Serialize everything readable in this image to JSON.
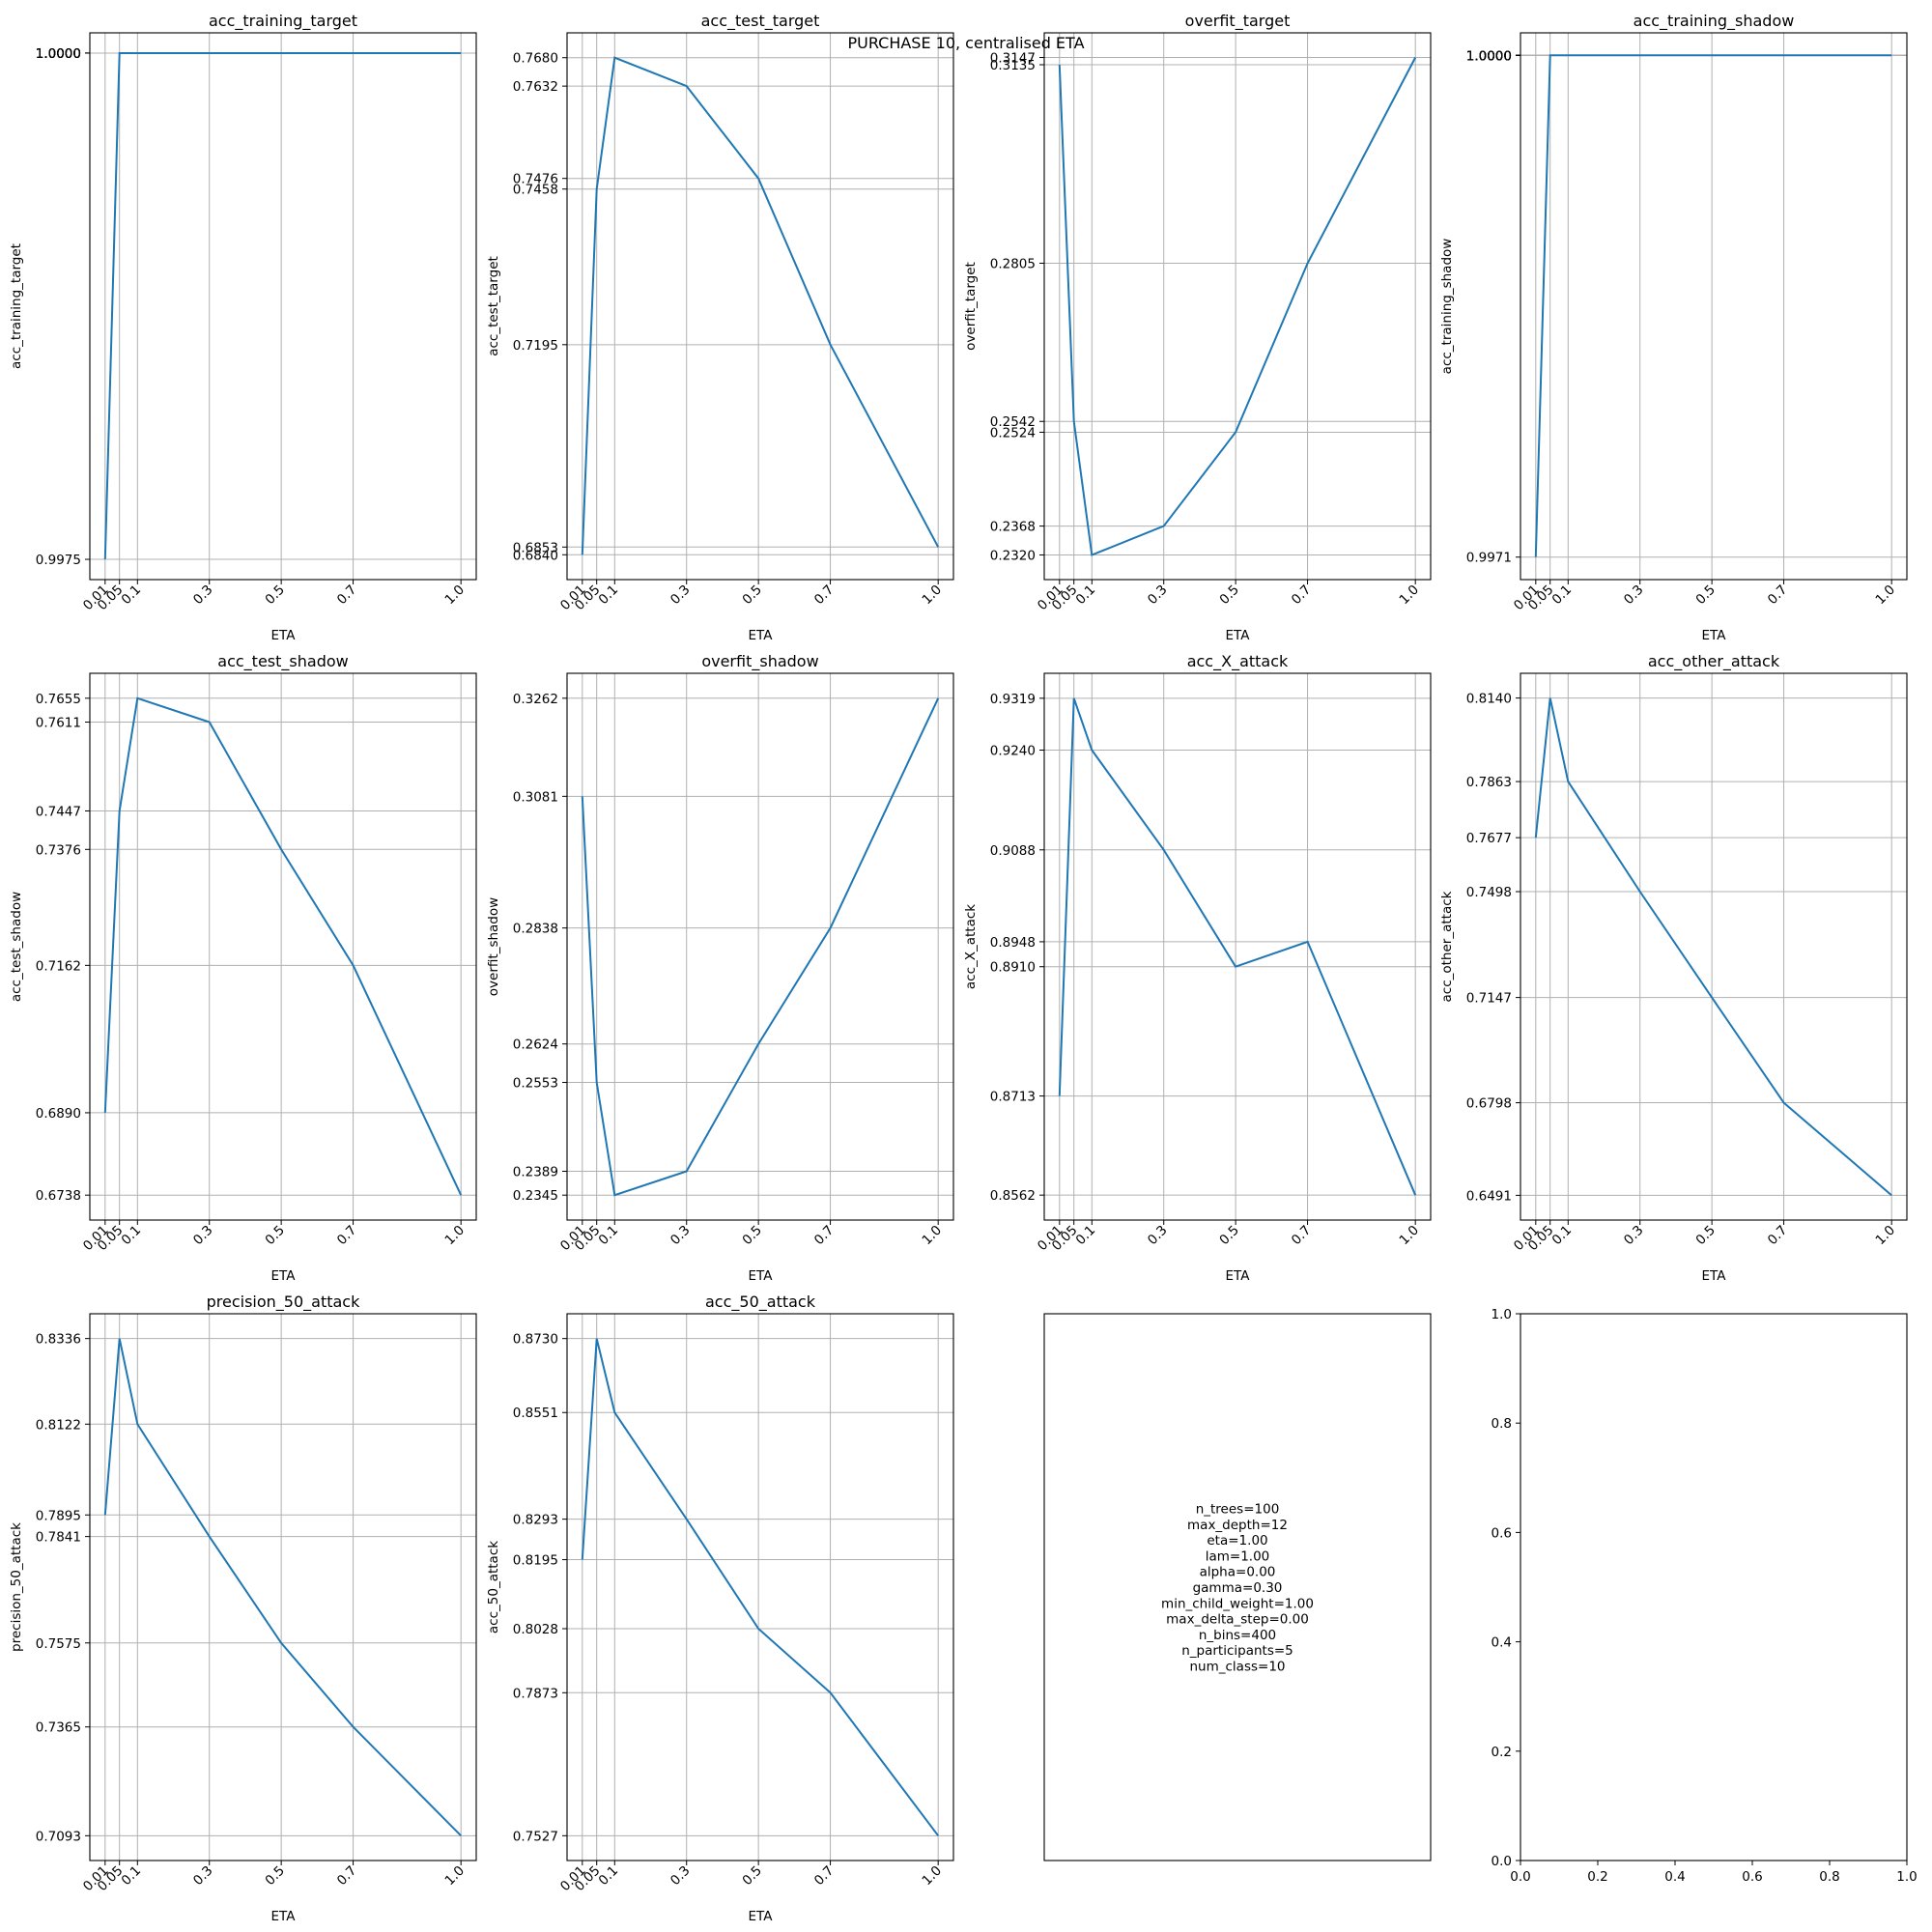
{
  "suptitle": "PURCHASE 10, centralised ETA",
  "chart_data": [
    {
      "type": "line",
      "title": "acc_training_target",
      "xlabel": "ETA",
      "ylabel": "acc_training_target",
      "x": [
        0.01,
        0.05,
        0.1,
        0.3,
        0.5,
        0.7,
        1.0
      ],
      "x_ticks": [
        "0.01",
        "0.05",
        "0.1",
        "0.3",
        "0.5",
        "0.7",
        "1.0"
      ],
      "y": [
        0.9975,
        1.0,
        1.0,
        1.0,
        1.0,
        1.0,
        1.0
      ],
      "y_ticks": [
        "1.0000",
        "1.0000",
        "1.0000",
        "1.0000",
        "1.0000",
        "1.0000",
        "0.9975"
      ],
      "y_tick_values": [
        1.0,
        1.0,
        1.0,
        1.0,
        1.0,
        1.0,
        0.9975
      ],
      "ylim": [
        0.9974,
        1.0001
      ],
      "grid": true
    },
    {
      "type": "line",
      "title": "acc_test_target",
      "xlabel": "ETA",
      "ylabel": "acc_test_target",
      "x": [
        0.01,
        0.05,
        0.1,
        0.3,
        0.5,
        0.7,
        1.0
      ],
      "x_ticks": [
        "0.01",
        "0.05",
        "0.1",
        "0.3",
        "0.5",
        "0.7",
        "1.0"
      ],
      "y": [
        0.684,
        0.7458,
        0.768,
        0.7632,
        0.7476,
        0.7195,
        0.6853
      ],
      "y_ticks": [
        "0.7680",
        "0.7632",
        "0.7476",
        "0.7458",
        "0.7195",
        "0.6853",
        "0.6840"
      ],
      "y_tick_values": [
        0.768,
        0.7632,
        0.7476,
        0.7458,
        0.7195,
        0.6853,
        0.684
      ],
      "ylim": [
        0.6798,
        0.7722
      ],
      "grid": true
    },
    {
      "type": "line",
      "title": "overfit_target",
      "xlabel": "ETA",
      "ylabel": "overfit_target",
      "x": [
        0.01,
        0.05,
        0.1,
        0.3,
        0.5,
        0.7,
        1.0
      ],
      "x_ticks": [
        "0.01",
        "0.05",
        "0.1",
        "0.3",
        "0.5",
        "0.7",
        "1.0"
      ],
      "y": [
        0.3135,
        0.2542,
        0.232,
        0.2368,
        0.2524,
        0.2805,
        0.3147
      ],
      "y_ticks": [
        "0.3147",
        "0.3135",
        "0.2805",
        "0.2542",
        "0.2524",
        "0.2368",
        "0.2320"
      ],
      "y_tick_values": [
        0.3147,
        0.3135,
        0.2805,
        0.2542,
        0.2524,
        0.2368,
        0.232
      ],
      "ylim": [
        0.2279,
        0.3188
      ],
      "grid": true
    },
    {
      "type": "line",
      "title": "acc_training_shadow",
      "xlabel": "ETA",
      "ylabel": "acc_training_shadow",
      "x": [
        0.01,
        0.05,
        0.1,
        0.3,
        0.5,
        0.7,
        1.0
      ],
      "x_ticks": [
        "0.01",
        "0.05",
        "0.1",
        "0.3",
        "0.5",
        "0.7",
        "1.0"
      ],
      "y": [
        0.9971,
        1.0,
        1.0,
        1.0,
        1.0,
        1.0,
        1.0
      ],
      "y_ticks": [
        "1.0000",
        "1.0000",
        "1.0000",
        "1.0000",
        "1.0000",
        "1.0000",
        "0.9971"
      ],
      "y_tick_values": [
        1.0,
        1.0,
        1.0,
        1.0,
        1.0,
        1.0,
        0.9971
      ],
      "ylim": [
        0.99697,
        1.00013
      ],
      "grid": true
    },
    {
      "type": "line",
      "title": "acc_test_shadow",
      "xlabel": "ETA",
      "ylabel": "acc_test_shadow",
      "x": [
        0.01,
        0.05,
        0.1,
        0.3,
        0.5,
        0.7,
        1.0
      ],
      "x_ticks": [
        "0.01",
        "0.05",
        "0.1",
        "0.3",
        "0.5",
        "0.7",
        "1.0"
      ],
      "y": [
        0.689,
        0.7447,
        0.7655,
        0.7611,
        0.7376,
        0.7162,
        0.6738
      ],
      "y_ticks": [
        "0.7655",
        "0.7611",
        "0.7447",
        "0.7376",
        "0.7162",
        "0.6890",
        "0.6738"
      ],
      "y_tick_values": [
        0.7655,
        0.7611,
        0.7447,
        0.7376,
        0.7162,
        0.689,
        0.6738
      ],
      "ylim": [
        0.6692,
        0.7701
      ],
      "grid": true
    },
    {
      "type": "line",
      "title": "overfit_shadow",
      "xlabel": "ETA",
      "ylabel": "overfit_shadow",
      "x": [
        0.01,
        0.05,
        0.1,
        0.3,
        0.5,
        0.7,
        1.0
      ],
      "x_ticks": [
        "0.01",
        "0.05",
        "0.1",
        "0.3",
        "0.5",
        "0.7",
        "1.0"
      ],
      "y": [
        0.3081,
        0.2553,
        0.2345,
        0.2389,
        0.2624,
        0.2838,
        0.3262
      ],
      "y_ticks": [
        "0.3262",
        "0.3081",
        "0.2838",
        "0.2624",
        "0.2553",
        "0.2389",
        "0.2345"
      ],
      "y_tick_values": [
        0.3262,
        0.3081,
        0.2838,
        0.2624,
        0.2553,
        0.2389,
        0.2345
      ],
      "ylim": [
        0.2299,
        0.3308
      ],
      "grid": true
    },
    {
      "type": "line",
      "title": "acc_X_attack",
      "xlabel": "ETA",
      "ylabel": "acc_X_attack",
      "x": [
        0.01,
        0.05,
        0.1,
        0.3,
        0.5,
        0.7,
        1.0
      ],
      "x_ticks": [
        "0.01",
        "0.05",
        "0.1",
        "0.3",
        "0.5",
        "0.7",
        "1.0"
      ],
      "y": [
        0.8713,
        0.9319,
        0.924,
        0.9088,
        0.891,
        0.8948,
        0.8562
      ],
      "y_ticks": [
        "0.9319",
        "0.9240",
        "0.9088",
        "0.8948",
        "0.8910",
        "0.8713",
        "0.8562"
      ],
      "y_tick_values": [
        0.9319,
        0.924,
        0.9088,
        0.8948,
        0.891,
        0.8713,
        0.8562
      ],
      "ylim": [
        0.8524,
        0.9357
      ],
      "grid": true
    },
    {
      "type": "line",
      "title": "acc_other_attack",
      "xlabel": "ETA",
      "ylabel": "acc_other_attack",
      "x": [
        0.01,
        0.05,
        0.1,
        0.3,
        0.5,
        0.7,
        1.0
      ],
      "x_ticks": [
        "0.01",
        "0.05",
        "0.1",
        "0.3",
        "0.5",
        "0.7",
        "1.0"
      ],
      "y": [
        0.7677,
        0.814,
        0.7863,
        0.7498,
        0.7147,
        0.6798,
        0.6491
      ],
      "y_ticks": [
        "0.8140",
        "0.7863",
        "0.7677",
        "0.7498",
        "0.7147",
        "0.6798",
        "0.6491"
      ],
      "y_tick_values": [
        0.814,
        0.7863,
        0.7677,
        0.7498,
        0.7147,
        0.6798,
        0.6491
      ],
      "ylim": [
        0.6409,
        0.8222
      ],
      "grid": true
    },
    {
      "type": "line",
      "title": "precision_50_attack",
      "xlabel": "ETA",
      "ylabel": "precision_50_attack",
      "x": [
        0.01,
        0.05,
        0.1,
        0.3,
        0.5,
        0.7,
        1.0
      ],
      "x_ticks": [
        "0.01",
        "0.05",
        "0.1",
        "0.3",
        "0.5",
        "0.7",
        "1.0"
      ],
      "y": [
        0.7895,
        0.8336,
        0.8122,
        0.7841,
        0.7575,
        0.7365,
        0.7093
      ],
      "y_ticks": [
        "0.8336",
        "0.8122",
        "0.7895",
        "0.7841",
        "0.7575",
        "0.7365",
        "0.7093"
      ],
      "y_tick_values": [
        0.8336,
        0.8122,
        0.7895,
        0.7841,
        0.7575,
        0.7365,
        0.7093
      ],
      "ylim": [
        0.7031,
        0.8398
      ],
      "grid": true
    },
    {
      "type": "line",
      "title": "acc_50_attack",
      "xlabel": "ETA",
      "ylabel": "acc_50_attack",
      "x": [
        0.01,
        0.05,
        0.1,
        0.3,
        0.5,
        0.7,
        1.0
      ],
      "x_ticks": [
        "0.01",
        "0.05",
        "0.1",
        "0.3",
        "0.5",
        "0.7",
        "1.0"
      ],
      "y": [
        0.8195,
        0.873,
        0.8551,
        0.8293,
        0.8028,
        0.7873,
        0.7527
      ],
      "y_ticks": [
        "0.8730",
        "0.8551",
        "0.8293",
        "0.8195",
        "0.8028",
        "0.7873",
        "0.7527"
      ],
      "y_tick_values": [
        0.873,
        0.8551,
        0.8293,
        0.8195,
        0.8028,
        0.7873,
        0.7527
      ],
      "ylim": [
        0.7467,
        0.879
      ],
      "grid": true
    },
    {
      "type": "text",
      "lines": [
        "n_trees=100",
        "max_depth=12",
        "eta=1.00",
        "lam=1.00",
        "alpha=0.00",
        "gamma=0.30",
        "min_child_weight=1.00",
        "max_delta_step=0.00",
        "n_bins=400",
        "n_participants=5",
        "num_class=10"
      ]
    },
    {
      "type": "empty",
      "x_ticks": [
        "0.0",
        "0.2",
        "0.4",
        "0.6",
        "0.8",
        "1.0"
      ],
      "x_tick_values": [
        0,
        0.2,
        0.4,
        0.6,
        0.8,
        1.0
      ],
      "y_ticks": [
        "0.0",
        "0.2",
        "0.4",
        "0.6",
        "0.8",
        "1.0"
      ],
      "y_tick_values": [
        0,
        0.2,
        0.4,
        0.6,
        0.8,
        1.0
      ],
      "xlim": [
        0,
        1
      ],
      "ylim": [
        0,
        1
      ]
    }
  ]
}
